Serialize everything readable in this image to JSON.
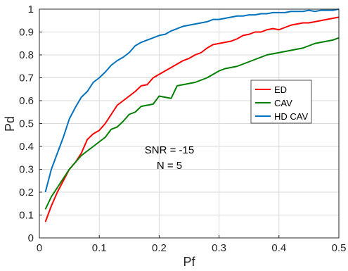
{
  "chart_data": {
    "type": "line",
    "title": "",
    "xlabel": "Pf",
    "ylabel": "Pd",
    "xlim": [
      0,
      0.5
    ],
    "ylim": [
      0,
      1
    ],
    "xticks": [
      0,
      0.1,
      0.2,
      0.3,
      0.4,
      0.5
    ],
    "xtick_labels": [
      "0",
      "0.1",
      "0.2",
      "0.3",
      "0.4",
      "0.5"
    ],
    "yticks": [
      0,
      0.1,
      0.2,
      0.3,
      0.4,
      0.5,
      0.6,
      0.7,
      0.8,
      0.9,
      1
    ],
    "ytick_labels": [
      "0",
      "0.1",
      "0.2",
      "0.3",
      "0.4",
      "0.5",
      "0.6",
      "0.7",
      "0.8",
      "0.9",
      "1"
    ],
    "grid": true,
    "legend_position": "center-right",
    "annotations": [
      "SNR = -15",
      "N = 5"
    ],
    "x": [
      0.01,
      0.02,
      0.03,
      0.04,
      0.05,
      0.06,
      0.07,
      0.08,
      0.09,
      0.1,
      0.11,
      0.12,
      0.13,
      0.14,
      0.15,
      0.16,
      0.17,
      0.18,
      0.19,
      0.2,
      0.21,
      0.22,
      0.23,
      0.24,
      0.25,
      0.26,
      0.27,
      0.28,
      0.29,
      0.3,
      0.31,
      0.32,
      0.33,
      0.34,
      0.35,
      0.36,
      0.37,
      0.38,
      0.39,
      0.4,
      0.41,
      0.42,
      0.43,
      0.44,
      0.45,
      0.46,
      0.47,
      0.48,
      0.49,
      0.5
    ],
    "series": [
      {
        "name": "ED",
        "color": "#ff0000",
        "values": [
          0.07,
          0.14,
          0.2,
          0.25,
          0.3,
          0.33,
          0.37,
          0.43,
          0.455,
          0.47,
          0.5,
          0.54,
          0.58,
          0.6,
          0.62,
          0.64,
          0.665,
          0.67,
          0.7,
          0.715,
          0.73,
          0.745,
          0.76,
          0.775,
          0.785,
          0.8,
          0.81,
          0.83,
          0.845,
          0.85,
          0.855,
          0.86,
          0.87,
          0.885,
          0.89,
          0.9,
          0.9,
          0.91,
          0.915,
          0.91,
          0.92,
          0.93,
          0.935,
          0.94,
          0.94,
          0.945,
          0.95,
          0.955,
          0.96,
          0.965
        ]
      },
      {
        "name": "CAV",
        "color": "#008000",
        "values": [
          0.125,
          0.18,
          0.22,
          0.26,
          0.3,
          0.33,
          0.36,
          0.38,
          0.4,
          0.42,
          0.44,
          0.475,
          0.485,
          0.51,
          0.54,
          0.55,
          0.575,
          0.58,
          0.585,
          0.62,
          0.615,
          0.61,
          0.665,
          0.67,
          0.675,
          0.68,
          0.69,
          0.7,
          0.715,
          0.73,
          0.74,
          0.745,
          0.75,
          0.76,
          0.77,
          0.78,
          0.79,
          0.8,
          0.805,
          0.81,
          0.815,
          0.82,
          0.825,
          0.83,
          0.84,
          0.85,
          0.855,
          0.86,
          0.865,
          0.875
        ]
      },
      {
        "name": "HD CAV",
        "color": "#0072bd",
        "values": [
          0.2,
          0.3,
          0.37,
          0.44,
          0.52,
          0.57,
          0.615,
          0.64,
          0.68,
          0.7,
          0.725,
          0.755,
          0.775,
          0.79,
          0.81,
          0.84,
          0.855,
          0.865,
          0.875,
          0.885,
          0.89,
          0.905,
          0.915,
          0.925,
          0.93,
          0.935,
          0.94,
          0.945,
          0.955,
          0.955,
          0.96,
          0.965,
          0.97,
          0.97,
          0.975,
          0.975,
          0.98,
          0.98,
          0.985,
          0.985,
          0.985,
          0.99,
          0.99,
          0.99,
          0.995,
          0.99,
          0.995,
          0.995,
          0.995,
          1.0
        ]
      }
    ]
  }
}
